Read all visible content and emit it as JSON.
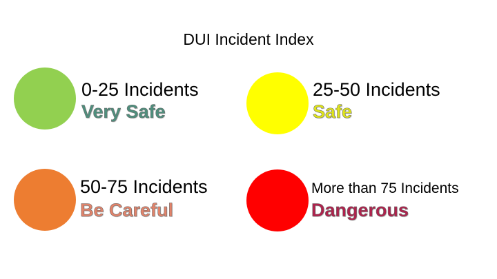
{
  "title": "DUI Incident Index",
  "legend": [
    {
      "range": "0-25 Incidents",
      "level": "Very Safe",
      "color": "#92d050",
      "level_color": "#4e8f7d"
    },
    {
      "range": "25-50 Incidents",
      "level": "Safe",
      "color": "#ffff00",
      "level_color": "#e0e51a"
    },
    {
      "range": "50-75 Incidents",
      "level": "Be Careful",
      "color": "#ed7d31",
      "level_color": "#e2836a"
    },
    {
      "range": "More than 75 Incidents",
      "level": "Dangerous",
      "color": "#ff0000",
      "level_color": "#b0214c"
    }
  ]
}
